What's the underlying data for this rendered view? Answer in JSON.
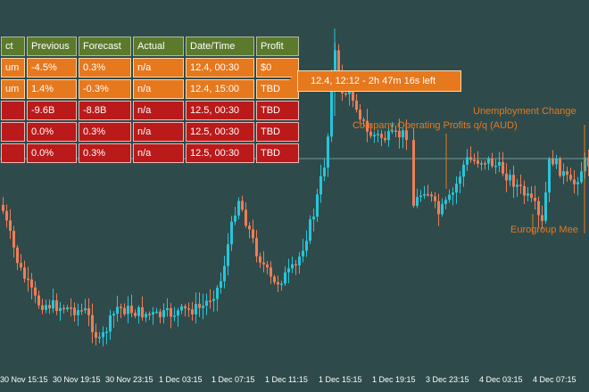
{
  "colors": {
    "background": "#2f4a4a",
    "bull_candle": "#26c6da",
    "bear_candle": "#ef7d57",
    "header_row": "#5b7a2c",
    "orange_row": "#e6781e",
    "red_row": "#bb1a1a",
    "annotation": "#e6781e",
    "level_line": "#6f9999"
  },
  "news_table": {
    "headers": [
      "ct",
      "Previous",
      "Forecast",
      "Actual",
      "Date/Time",
      "Profit"
    ],
    "rows": [
      {
        "style": "orange",
        "cells": [
          "um",
          "-4.5%",
          "0.3%",
          "n/a",
          "12.4, 00:30",
          "$0"
        ]
      },
      {
        "style": "orange",
        "cells": [
          "um",
          "1.4%",
          "-0.3%",
          "n/a",
          "12.4, 15:00",
          "TBD"
        ]
      },
      {
        "style": "red",
        "cells": [
          "",
          "-9.6B",
          "-8.8B",
          "n/a",
          "12.5, 00:30",
          "TBD"
        ]
      },
      {
        "style": "red",
        "cells": [
          "",
          "0.0%",
          "0.3%",
          "n/a",
          "12.5, 00:30",
          "TBD"
        ]
      },
      {
        "style": "red",
        "cells": [
          "",
          "0.0%",
          "0.3%",
          "n/a",
          "12.5, 00:30",
          "TBD"
        ]
      }
    ]
  },
  "countdown": {
    "label": "12.4, 12:12 - 2h 47m 16s left"
  },
  "annotations": {
    "unemployment": "Unemployment Change",
    "operating_profits": "Company Operating Profits q/q (AUD)",
    "eurogroup": "Eurogroup Mee"
  },
  "time_axis": [
    "30 Nov 15:15",
    "30 Nov 19:15",
    "30 Nov 23:15",
    "1 Dec 03:15",
    "1 Dec 07:15",
    "1 Dec 11:15",
    "1 Dec 15:15",
    "1 Dec 19:15",
    "3 Dec 23:15",
    "4 Dec 03:15",
    "4 Dec 07:15"
  ],
  "chart_data": {
    "type": "candlestick",
    "title": "",
    "xlabel": "",
    "ylabel": "",
    "x": [
      "30 Nov 15:15",
      "30 Nov 19:15",
      "30 Nov 23:15",
      "1 Dec 03:15",
      "1 Dec 07:15",
      "1 Dec 11:15",
      "1 Dec 15:15",
      "1 Dec 19:15",
      "3 Dec 23:15",
      "4 Dec 03:15",
      "4 Dec 07:15"
    ],
    "series": [
      {
        "values": [
          240,
          330,
          345,
          355,
          330,
          290,
          110,
          150,
          220,
          200,
          180
        ]
      }
    ]
  }
}
